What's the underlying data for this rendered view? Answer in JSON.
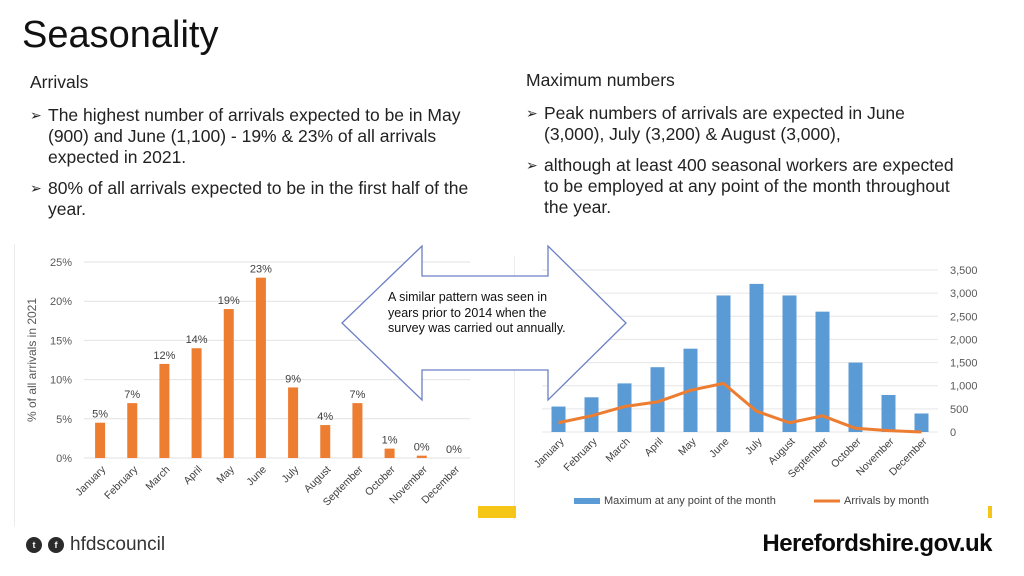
{
  "title": "Seasonality",
  "left_column": {
    "heading": "Arrivals",
    "bullets": [
      "The highest number of arrivals expected to be in May (900) and June (1,100) - 19% & 23% of all arrivals expected in 2021.",
      "80% of all arrivals expected to be in the first half of the year."
    ]
  },
  "right_column": {
    "heading": "Maximum numbers",
    "bullets": [
      "Peak numbers of arrivals are expected in June (3,000), July (3,200) & August (3,000),",
      "although at least 400 seasonal workers are expected to be employed at any point of the month throughout the year."
    ]
  },
  "callout": {
    "text": "A similar pattern was seen in years prior to 2014 when the survey was carried out annually."
  },
  "footer": {
    "social_handle": "hfdscouncil",
    "site_name": "Herefordshire.gov.uk"
  },
  "chart_data": [
    {
      "type": "bar",
      "title": "",
      "ylabel": "% of all arrivals in 2021",
      "xlabel": "",
      "categories": [
        "January",
        "February",
        "March",
        "April",
        "May",
        "June",
        "July",
        "August",
        "September",
        "October",
        "November",
        "December"
      ],
      "values": [
        4.5,
        7,
        12,
        14,
        19,
        23,
        9,
        4.2,
        7,
        1.2,
        0.3,
        0
      ],
      "data_labels": [
        "5%",
        "7%",
        "12%",
        "14%",
        "19%",
        "23%",
        "9%",
        "4%",
        "7%",
        "1%",
        "0%",
        "0%"
      ],
      "y_ticks": [
        "0%",
        "5%",
        "10%",
        "15%",
        "20%",
        "25%"
      ],
      "ylim": [
        0,
        25
      ],
      "color": "#ed7d31"
    },
    {
      "type": "bar+line",
      "title": "",
      "categories": [
        "January",
        "February",
        "March",
        "April",
        "May",
        "June",
        "July",
        "August",
        "September",
        "October",
        "November",
        "December"
      ],
      "series": [
        {
          "name": "Maximum at any point of the month",
          "type": "bar",
          "color": "#5b9bd5",
          "values": [
            550,
            750,
            1050,
            1400,
            1800,
            2950,
            3200,
            2950,
            2600,
            1500,
            800,
            400
          ]
        },
        {
          "name": "Arrivals by month",
          "type": "line",
          "color": "#ed7d31",
          "values": [
            200,
            350,
            550,
            650,
            900,
            1050,
            450,
            200,
            350,
            80,
            30,
            0
          ]
        }
      ],
      "y_ticks": [
        "0",
        "500",
        "1,000",
        "1,500",
        "2,000",
        "2,500",
        "3,000",
        "3,500"
      ],
      "ylim": [
        0,
        3500
      ],
      "legend_position": "bottom"
    }
  ]
}
